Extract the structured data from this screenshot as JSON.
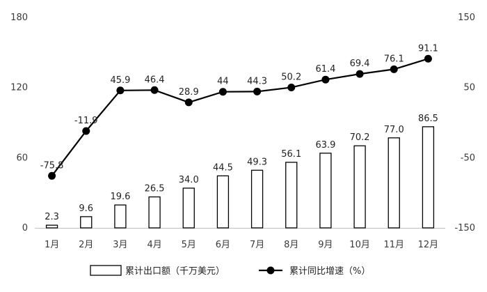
{
  "chart_data": {
    "type": "bar",
    "categories": [
      "1月",
      "2月",
      "3月",
      "4月",
      "5月",
      "6月",
      "7月",
      "8月",
      "9月",
      "10月",
      "11月",
      "12月"
    ],
    "series": [
      {
        "name": "累计出口额（千万美元）",
        "type": "bar",
        "axis": "left",
        "values": [
          2.3,
          9.6,
          19.6,
          26.5,
          34.0,
          44.5,
          49.3,
          56.1,
          63.9,
          70.2,
          77.0,
          86.5
        ],
        "labels": [
          "2.3",
          "9.6",
          "19.6",
          "26.5",
          "34.0",
          "44.5",
          "49.3",
          "56.1",
          "63.9",
          "70.2",
          "77.0",
          "86.5"
        ]
      },
      {
        "name": "累计同比增速（%）",
        "type": "line",
        "axis": "right",
        "values": [
          -75.8,
          -11.9,
          45.9,
          46.4,
          28.9,
          44,
          44.3,
          50.2,
          61.4,
          69.4,
          76.1,
          91.1
        ],
        "labels": [
          "-75.8",
          "-11.9",
          "45.9",
          "46.4",
          "28.9",
          "44",
          "44.3",
          "50.2",
          "61.4",
          "69.4",
          "76.1",
          "91.1"
        ]
      }
    ],
    "y_left": {
      "ylim": [
        0,
        180
      ],
      "ticks": [
        "0",
        "60",
        "120",
        "180"
      ],
      "tick_values": [
        0,
        60,
        120,
        180
      ]
    },
    "y_right": {
      "ylim": [
        -150,
        150
      ],
      "ticks": [
        "-150",
        "-50",
        "50",
        "150"
      ],
      "tick_values": [
        -150,
        -50,
        50,
        150
      ]
    },
    "grid": false,
    "legend": "bottom",
    "colors": {
      "bar_fill": "#ffffff",
      "bar_stroke": "#000000",
      "line": "#000000",
      "axis": "#bfbfbf"
    }
  }
}
